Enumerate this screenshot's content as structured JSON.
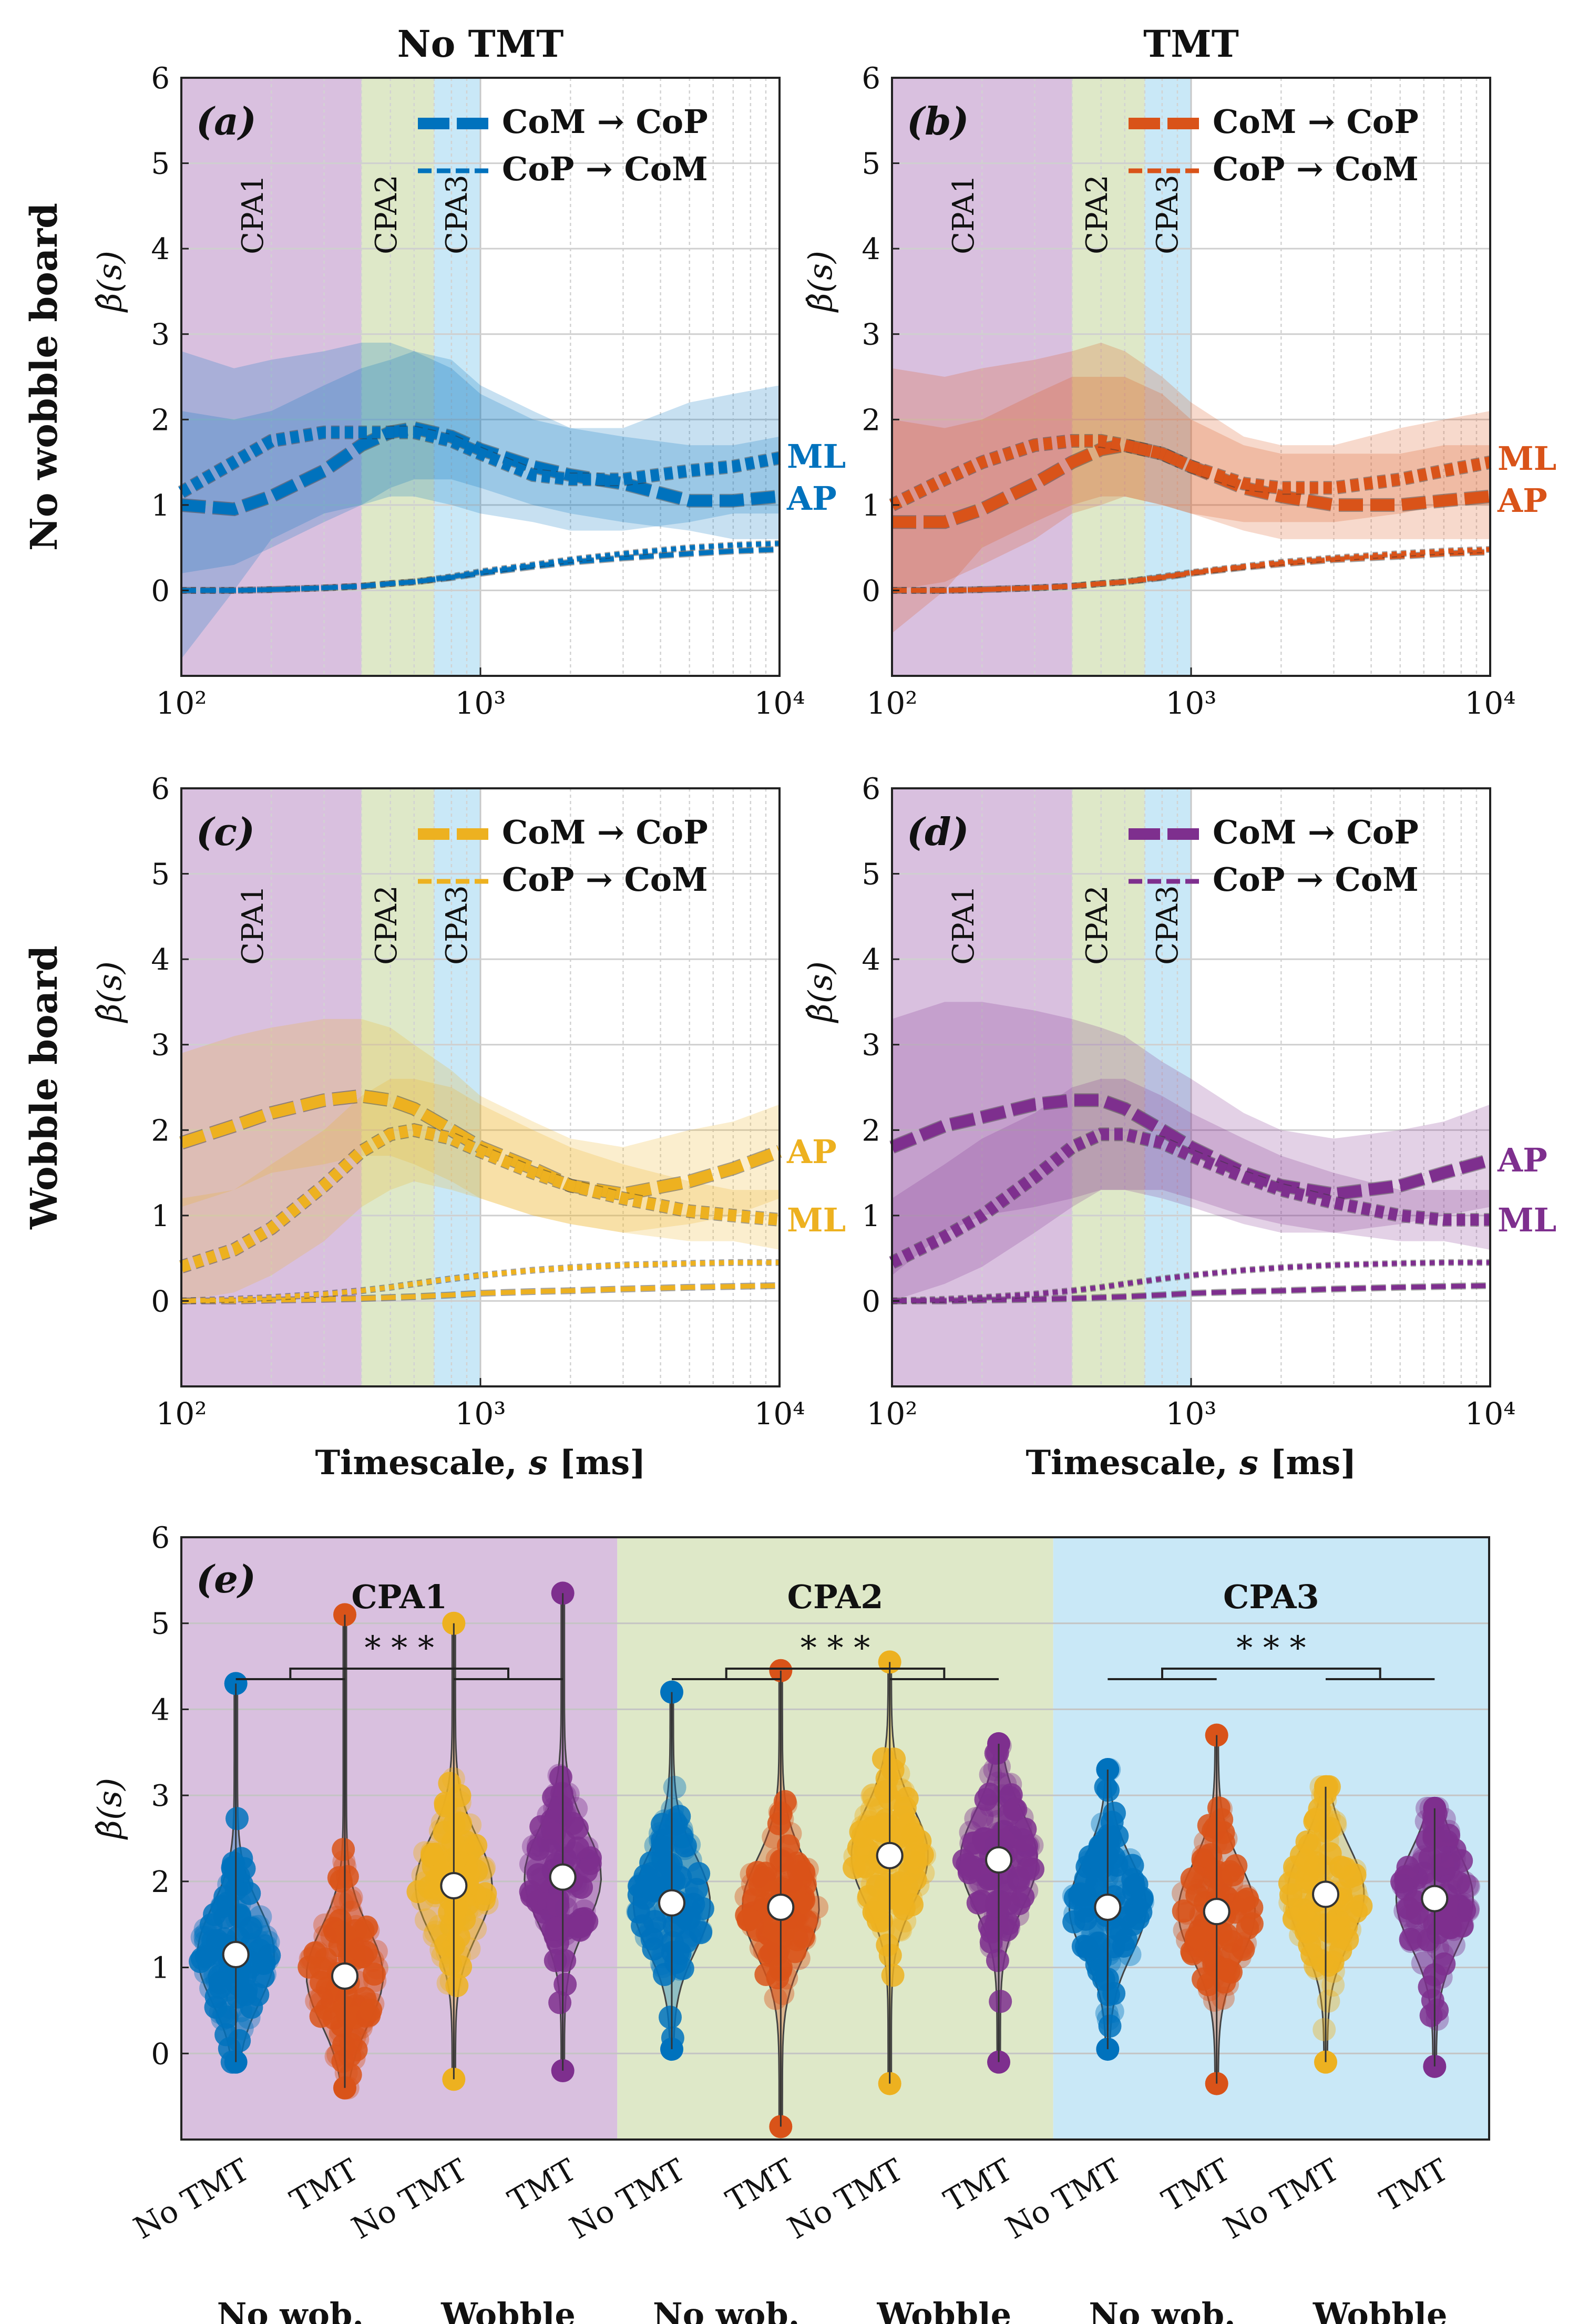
{
  "figure": {
    "column_titles": [
      "No TMT",
      "TMT"
    ],
    "row_titles": [
      "No wobble board",
      "Wobble board"
    ],
    "ylabel": "β̂(s)",
    "xlabel_prefix": "Timescale,",
    "xlabel_var": "s",
    "xlabel_unit": "[ms]",
    "region_labels": [
      "CPA1",
      "CPA2",
      "CPA3"
    ],
    "legend": {
      "forward": "CoM → CoP",
      "reverse": "CoP → CoM"
    },
    "colors": {
      "no_wobble_no_tmt": "#0072BD",
      "no_wobble_tmt": "#D95319",
      "wobble_no_tmt": "#EDB120",
      "wobble_tmt": "#7E2F8E",
      "cpa1_bg": "#D9C0DF",
      "cpa2_bg": "#DEE8C8",
      "cpa3_bg": "#C9E8F7"
    },
    "x_ticks": [
      "10²",
      "10³",
      "10⁴"
    ],
    "y_ticks": [
      "0",
      "1",
      "2",
      "3",
      "4",
      "5",
      "6"
    ]
  },
  "chart_data": [
    {
      "panel": "(a)",
      "type": "line",
      "xscale": "log",
      "xlim": [
        100,
        10000
      ],
      "ylim": [
        -1,
        6
      ],
      "cpa_bounds_ms": [
        [
          100,
          400
        ],
        [
          400,
          700
        ],
        [
          700,
          1000
        ]
      ],
      "color": "#0072BD",
      "end_labels": [
        "ML",
        "AP"
      ],
      "x": [
        100,
        150,
        200,
        300,
        400,
        500,
        600,
        800,
        1000,
        1500,
        2000,
        3000,
        5000,
        7000,
        10000
      ],
      "series": [
        {
          "name": "CoM → CoP AP",
          "values": [
            1.0,
            0.95,
            1.1,
            1.4,
            1.7,
            1.85,
            1.9,
            1.8,
            1.65,
            1.45,
            1.35,
            1.25,
            1.05,
            1.05,
            1.1
          ],
          "band": [
            [
              0.2,
              2.1
            ],
            [
              0.3,
              2.0
            ],
            [
              0.5,
              2.1
            ],
            [
              0.8,
              2.4
            ],
            [
              1.0,
              2.6
            ],
            [
              1.2,
              2.7
            ],
            [
              1.3,
              2.8
            ],
            [
              1.3,
              2.7
            ],
            [
              1.2,
              2.4
            ],
            [
              1.0,
              2.1
            ],
            [
              0.9,
              1.9
            ],
            [
              0.8,
              1.8
            ],
            [
              0.7,
              1.7
            ],
            [
              0.6,
              1.7
            ],
            [
              0.6,
              1.8
            ]
          ]
        },
        {
          "name": "CoM → CoP ML",
          "values": [
            1.15,
            1.5,
            1.75,
            1.85,
            1.85,
            1.85,
            1.85,
            1.75,
            1.6,
            1.35,
            1.3,
            1.3,
            1.4,
            1.45,
            1.55
          ],
          "band": [
            [
              -0.8,
              2.8
            ],
            [
              0.0,
              2.6
            ],
            [
              0.6,
              2.7
            ],
            [
              0.9,
              2.8
            ],
            [
              1.0,
              2.9
            ],
            [
              1.1,
              2.9
            ],
            [
              1.1,
              2.8
            ],
            [
              1.0,
              2.6
            ],
            [
              0.9,
              2.3
            ],
            [
              0.8,
              2.0
            ],
            [
              0.7,
              1.9
            ],
            [
              0.7,
              1.9
            ],
            [
              0.8,
              2.2
            ],
            [
              0.9,
              2.3
            ],
            [
              0.9,
              2.4
            ]
          ]
        },
        {
          "name": "CoP → CoM AP",
          "values": [
            0.0,
            0.0,
            0.01,
            0.03,
            0.05,
            0.08,
            0.1,
            0.15,
            0.2,
            0.28,
            0.33,
            0.38,
            0.43,
            0.46,
            0.48
          ]
        },
        {
          "name": "CoP → CoM ML",
          "values": [
            0.0,
            0.0,
            0.01,
            0.03,
            0.05,
            0.08,
            0.1,
            0.16,
            0.22,
            0.3,
            0.36,
            0.43,
            0.5,
            0.53,
            0.55
          ]
        }
      ]
    },
    {
      "panel": "(b)",
      "type": "line",
      "xscale": "log",
      "xlim": [
        100,
        10000
      ],
      "ylim": [
        -1,
        6
      ],
      "cpa_bounds_ms": [
        [
          100,
          400
        ],
        [
          400,
          700
        ],
        [
          700,
          1000
        ]
      ],
      "color": "#D95319",
      "end_labels": [
        "ML",
        "AP"
      ],
      "x": [
        100,
        150,
        200,
        300,
        400,
        500,
        600,
        800,
        1000,
        1500,
        2000,
        3000,
        5000,
        7000,
        10000
      ],
      "series": [
        {
          "name": "CoM → CoP AP",
          "values": [
            0.8,
            0.8,
            0.95,
            1.25,
            1.5,
            1.65,
            1.7,
            1.6,
            1.45,
            1.2,
            1.1,
            1.0,
            1.0,
            1.05,
            1.1
          ],
          "band": [
            [
              0.0,
              2.0
            ],
            [
              0.1,
              1.9
            ],
            [
              0.3,
              2.0
            ],
            [
              0.6,
              2.3
            ],
            [
              0.9,
              2.5
            ],
            [
              1.0,
              2.5
            ],
            [
              1.1,
              2.5
            ],
            [
              1.0,
              2.3
            ],
            [
              0.9,
              2.0
            ],
            [
              0.7,
              1.7
            ],
            [
              0.6,
              1.6
            ],
            [
              0.6,
              1.6
            ],
            [
              0.6,
              1.6
            ],
            [
              0.6,
              1.7
            ],
            [
              0.6,
              1.7
            ]
          ]
        },
        {
          "name": "CoM → CoP ML",
          "values": [
            1.0,
            1.3,
            1.5,
            1.7,
            1.75,
            1.75,
            1.7,
            1.6,
            1.45,
            1.25,
            1.2,
            1.2,
            1.3,
            1.4,
            1.5
          ],
          "band": [
            [
              -0.5,
              2.6
            ],
            [
              0.0,
              2.5
            ],
            [
              0.5,
              2.6
            ],
            [
              0.8,
              2.7
            ],
            [
              1.0,
              2.8
            ],
            [
              1.1,
              2.9
            ],
            [
              1.1,
              2.8
            ],
            [
              1.0,
              2.5
            ],
            [
              0.9,
              2.2
            ],
            [
              0.8,
              1.8
            ],
            [
              0.8,
              1.7
            ],
            [
              0.8,
              1.7
            ],
            [
              0.9,
              1.9
            ],
            [
              1.0,
              2.0
            ],
            [
              1.0,
              2.1
            ]
          ]
        },
        {
          "name": "CoP → CoM AP",
          "values": [
            0.0,
            0.0,
            0.01,
            0.03,
            0.05,
            0.08,
            0.1,
            0.15,
            0.2,
            0.27,
            0.31,
            0.36,
            0.4,
            0.43,
            0.45
          ]
        },
        {
          "name": "CoP → CoM ML",
          "values": [
            0.0,
            0.0,
            0.01,
            0.03,
            0.05,
            0.08,
            0.1,
            0.16,
            0.21,
            0.28,
            0.33,
            0.38,
            0.43,
            0.46,
            0.48
          ]
        }
      ]
    },
    {
      "panel": "(c)",
      "type": "line",
      "xscale": "log",
      "xlim": [
        100,
        10000
      ],
      "ylim": [
        -1,
        6
      ],
      "cpa_bounds_ms": [
        [
          100,
          400
        ],
        [
          400,
          700
        ],
        [
          700,
          1000
        ]
      ],
      "color": "#EDB120",
      "end_labels": [
        "AP",
        "ML"
      ],
      "x": [
        100,
        150,
        200,
        300,
        400,
        500,
        600,
        800,
        1000,
        1500,
        2000,
        3000,
        5000,
        7000,
        10000
      ],
      "series": [
        {
          "name": "CoM → CoP AP",
          "values": [
            1.85,
            2.05,
            2.2,
            2.35,
            2.4,
            2.35,
            2.25,
            2.0,
            1.8,
            1.55,
            1.35,
            1.25,
            1.4,
            1.55,
            1.75
          ],
          "band": [
            [
              1.1,
              2.9
            ],
            [
              1.3,
              3.1
            ],
            [
              1.5,
              3.2
            ],
            [
              1.6,
              3.3
            ],
            [
              1.7,
              3.3
            ],
            [
              1.7,
              3.2
            ],
            [
              1.6,
              3.0
            ],
            [
              1.4,
              2.7
            ],
            [
              1.2,
              2.4
            ],
            [
              1.0,
              2.1
            ],
            [
              0.9,
              1.9
            ],
            [
              0.8,
              1.8
            ],
            [
              0.9,
              2.0
            ],
            [
              1.0,
              2.1
            ],
            [
              1.2,
              2.3
            ]
          ]
        },
        {
          "name": "CoM → CoP ML",
          "values": [
            0.4,
            0.6,
            0.85,
            1.35,
            1.75,
            1.95,
            2.0,
            1.9,
            1.75,
            1.5,
            1.35,
            1.2,
            1.05,
            1.0,
            0.95
          ],
          "band": [
            [
              0.0,
              1.2
            ],
            [
              0.1,
              1.3
            ],
            [
              0.3,
              1.6
            ],
            [
              0.7,
              2.0
            ],
            [
              1.1,
              2.4
            ],
            [
              1.3,
              2.6
            ],
            [
              1.4,
              2.6
            ],
            [
              1.3,
              2.5
            ],
            [
              1.2,
              2.3
            ],
            [
              1.0,
              2.0
            ],
            [
              0.9,
              1.8
            ],
            [
              0.8,
              1.6
            ],
            [
              0.7,
              1.4
            ],
            [
              0.7,
              1.3
            ],
            [
              0.6,
              1.3
            ]
          ]
        },
        {
          "name": "CoP → CoM AP",
          "values": [
            0.0,
            0.0,
            0.01,
            0.02,
            0.03,
            0.04,
            0.05,
            0.07,
            0.09,
            0.11,
            0.12,
            0.14,
            0.16,
            0.17,
            0.18
          ]
        },
        {
          "name": "CoP → CoM ML",
          "values": [
            0.0,
            0.02,
            0.04,
            0.08,
            0.12,
            0.16,
            0.2,
            0.26,
            0.3,
            0.36,
            0.39,
            0.42,
            0.44,
            0.45,
            0.45
          ]
        }
      ]
    },
    {
      "panel": "(d)",
      "type": "line",
      "xscale": "log",
      "xlim": [
        100,
        10000
      ],
      "ylim": [
        -1,
        6
      ],
      "cpa_bounds_ms": [
        [
          100,
          400
        ],
        [
          400,
          700
        ],
        [
          700,
          1000
        ]
      ],
      "color": "#7E2F8E",
      "end_labels": [
        "AP",
        "ML"
      ],
      "x": [
        100,
        150,
        200,
        300,
        400,
        500,
        600,
        800,
        1000,
        1500,
        2000,
        3000,
        5000,
        7000,
        10000
      ],
      "series": [
        {
          "name": "CoM → CoP AP",
          "values": [
            1.8,
            2.05,
            2.15,
            2.3,
            2.35,
            2.35,
            2.25,
            2.0,
            1.8,
            1.5,
            1.35,
            1.25,
            1.35,
            1.5,
            1.65
          ],
          "band": [
            [
              0.3,
              3.3
            ],
            [
              0.8,
              3.5
            ],
            [
              1.0,
              3.5
            ],
            [
              1.1,
              3.4
            ],
            [
              1.2,
              3.3
            ],
            [
              1.3,
              3.2
            ],
            [
              1.3,
              3.1
            ],
            [
              1.2,
              2.8
            ],
            [
              1.1,
              2.6
            ],
            [
              0.9,
              2.2
            ],
            [
              0.8,
              2.0
            ],
            [
              0.8,
              1.9
            ],
            [
              0.9,
              2.0
            ],
            [
              1.0,
              2.1
            ],
            [
              1.1,
              2.3
            ]
          ]
        },
        {
          "name": "CoM → CoP ML",
          "values": [
            0.45,
            0.75,
            1.0,
            1.45,
            1.8,
            1.95,
            1.95,
            1.85,
            1.7,
            1.45,
            1.3,
            1.15,
            1.0,
            0.95,
            0.95
          ],
          "band": [
            [
              0.0,
              1.2
            ],
            [
              0.2,
              1.6
            ],
            [
              0.4,
              1.9
            ],
            [
              0.8,
              2.2
            ],
            [
              1.1,
              2.5
            ],
            [
              1.3,
              2.6
            ],
            [
              1.3,
              2.6
            ],
            [
              1.3,
              2.4
            ],
            [
              1.2,
              2.2
            ],
            [
              1.0,
              1.9
            ],
            [
              0.9,
              1.7
            ],
            [
              0.8,
              1.5
            ],
            [
              0.7,
              1.3
            ],
            [
              0.7,
              1.3
            ],
            [
              0.6,
              1.3
            ]
          ]
        },
        {
          "name": "CoP → CoM AP",
          "values": [
            0.0,
            0.0,
            0.01,
            0.02,
            0.03,
            0.04,
            0.05,
            0.07,
            0.09,
            0.11,
            0.12,
            0.14,
            0.16,
            0.17,
            0.18
          ]
        },
        {
          "name": "CoP → CoM ML",
          "values": [
            0.0,
            0.02,
            0.04,
            0.08,
            0.12,
            0.16,
            0.2,
            0.26,
            0.3,
            0.36,
            0.39,
            0.42,
            0.44,
            0.45,
            0.45
          ]
        }
      ]
    },
    {
      "panel": "(e)",
      "type": "violin",
      "ylim": [
        -1,
        6
      ],
      "groups": [
        "CPA1",
        "CPA2",
        "CPA3"
      ],
      "significance": "* * *",
      "categories": [
        "No TMT",
        "TMT",
        "No TMT",
        "TMT"
      ],
      "condition_labels": [
        "No wob.",
        "Wobble"
      ],
      "medians": [
        [
          1.15,
          0.9,
          1.95,
          2.05
        ],
        [
          1.75,
          1.7,
          2.3,
          2.25
        ],
        [
          1.7,
          1.65,
          1.85,
          1.8
        ]
      ],
      "ranges": [
        [
          [
            -0.1,
            4.3
          ],
          [
            -0.4,
            5.1
          ],
          [
            -0.3,
            5.0
          ],
          [
            -0.2,
            5.35
          ]
        ],
        [
          [
            0.05,
            4.2
          ],
          [
            -0.85,
            4.45
          ],
          [
            -0.35,
            4.55
          ],
          [
            -0.1,
            3.6
          ]
        ],
        [
          [
            0.05,
            3.3
          ],
          [
            -0.35,
            3.7
          ],
          [
            -0.1,
            3.1
          ],
          [
            -0.15,
            2.85
          ]
        ]
      ]
    }
  ]
}
